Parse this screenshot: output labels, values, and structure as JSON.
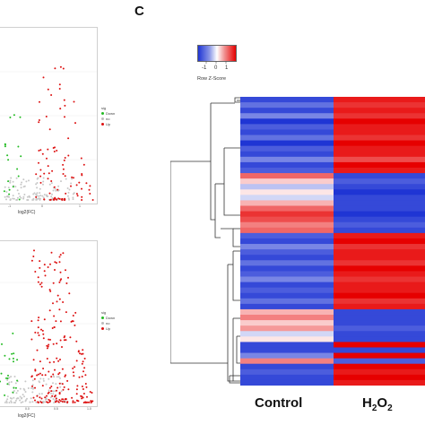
{
  "panel_letter": "C",
  "volcano_plots": [
    {
      "legend_title": "sig",
      "legend_items": [
        {
          "label": "Down",
          "color": "#22bb22"
        },
        {
          "label": "no",
          "color": "#bbbbbb"
        },
        {
          "label": "Up",
          "color": "#dd1111"
        }
      ],
      "xlabel": "log2(FC)",
      "ticks": [
        "-1",
        "0",
        "1"
      ]
    },
    {
      "legend_title": "sig",
      "legend_items": [
        {
          "label": "Down",
          "color": "#22bb22"
        },
        {
          "label": "no",
          "color": "#bbbbbb"
        },
        {
          "label": "Up",
          "color": "#dd1111"
        }
      ],
      "xlabel": "log2(FC)",
      "ticks": [
        "0.0",
        "0.5",
        "1.0"
      ]
    }
  ],
  "color_key": {
    "title": "Row Z-Score",
    "ticks": [
      "-1",
      "0",
      "1"
    ],
    "low_color": "#1f35d4",
    "mid_color": "#ffffff",
    "high_color": "#e60000"
  },
  "chart_data": {
    "type": "heatmap",
    "columns": [
      "Control",
      "H2O2"
    ],
    "column_labels_display": {
      "control": "Control",
      "h2o2_main": "H",
      "h2o2_sub": "2",
      "h2o2_o": "O",
      "h2o2_sub2": "2"
    },
    "row_zscores": [
      [
        -0.9,
        0.9
      ],
      [
        -0.7,
        0.8
      ],
      [
        -0.9,
        0.9
      ],
      [
        -0.6,
        0.8
      ],
      [
        -1.0,
        1.0
      ],
      [
        -0.8,
        0.9
      ],
      [
        -0.9,
        0.9
      ],
      [
        -0.7,
        0.8
      ],
      [
        -1.0,
        1.0
      ],
      [
        -0.8,
        0.9
      ],
      [
        -0.9,
        0.9
      ],
      [
        -0.6,
        0.7
      ],
      [
        -0.9,
        1.0
      ],
      [
        -0.8,
        0.9
      ],
      [
        0.6,
        -0.9
      ],
      [
        0.2,
        -0.8
      ],
      [
        -0.3,
        -0.9
      ],
      [
        0.1,
        -1.0
      ],
      [
        -0.2,
        -0.9
      ],
      [
        0.3,
        -0.9
      ],
      [
        0.6,
        -0.9
      ],
      [
        0.8,
        -1.0
      ],
      [
        0.7,
        -0.9
      ],
      [
        0.5,
        -0.8
      ],
      [
        0.6,
        -0.9
      ],
      [
        -0.8,
        0.9
      ],
      [
        -0.9,
        1.0
      ],
      [
        -0.6,
        0.8
      ],
      [
        -0.8,
        0.9
      ],
      [
        -0.9,
        0.9
      ],
      [
        -0.7,
        0.8
      ],
      [
        -0.9,
        1.0
      ],
      [
        -0.8,
        0.9
      ],
      [
        -0.6,
        0.8
      ],
      [
        -0.9,
        0.9
      ],
      [
        -0.8,
        0.9
      ],
      [
        -0.9,
        1.0
      ],
      [
        -0.7,
        0.8
      ],
      [
        -0.9,
        0.9
      ],
      [
        0.3,
        -0.9
      ],
      [
        0.5,
        -0.9
      ],
      [
        0.2,
        -0.9
      ],
      [
        0.4,
        -0.8
      ],
      [
        -0.2,
        -0.9
      ],
      [
        0.1,
        -0.9
      ],
      [
        -0.9,
        1.0
      ],
      [
        -0.9,
        -0.9
      ],
      [
        -0.6,
        1.0
      ],
      [
        0.5,
        -0.8
      ],
      [
        -0.9,
        1.0
      ],
      [
        -0.8,
        0.9
      ],
      [
        -0.9,
        1.0
      ],
      [
        -0.9,
        0.9
      ]
    ]
  }
}
